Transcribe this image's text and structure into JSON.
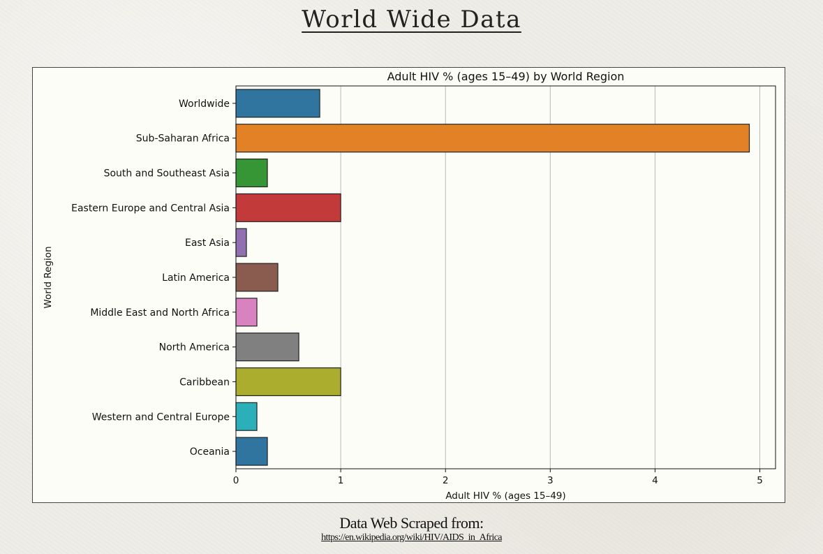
{
  "page": {
    "title": "World Wide Data",
    "footer_text": "Data Web Scraped from:",
    "footer_link": "https://en.wikipedia.org/wiki/HIV/AIDS_in_Africa"
  },
  "chart_data": {
    "type": "bar",
    "orientation": "horizontal",
    "title": "Adult HIV % (ages 15–49) by World Region",
    "xlabel": "Adult HIV % (ages 15–49)",
    "ylabel": "World Region",
    "xlim": [
      0,
      5.15
    ],
    "xticks": [
      "0",
      "1",
      "2",
      "3",
      "4",
      "5"
    ],
    "grid": "vertical",
    "categories": [
      "Worldwide",
      "Sub-Saharan Africa",
      "South and Southeast Asia",
      "Eastern Europe and Central Asia",
      "East Asia",
      "Latin America",
      "Middle East and North Africa",
      "North America",
      "Caribbean",
      "Western and Central Europe",
      "Oceania"
    ],
    "values": [
      0.8,
      4.9,
      0.3,
      1.0,
      0.1,
      0.4,
      0.2,
      0.6,
      1.0,
      0.2,
      0.3
    ],
    "colors": [
      "#2f75a0",
      "#e28126",
      "#369636",
      "#c23a3a",
      "#9070b0",
      "#8a5c50",
      "#d883bf",
      "#808080",
      "#aaad2e",
      "#2bafb9",
      "#2f75a0"
    ]
  }
}
